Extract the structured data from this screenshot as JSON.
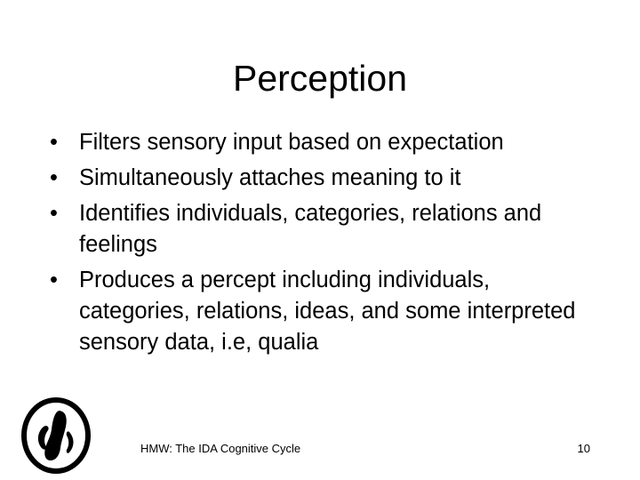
{
  "slide": {
    "title": "Perception",
    "bullets": [
      "Filters sensory input based on expectation",
      "Simultaneously attaches meaning to it",
      "Identifies individuals, categories, relations and feelings",
      "Produces a percept including individuals, categories, relations, ideas, and some interpreted sensory data, i.e, qualia"
    ],
    "bullet_glyph": "•",
    "footer": {
      "title": "HMW: The IDA Cognitive Cycle",
      "page_number": "10"
    },
    "logo_icon": "stylized-ida-logo-icon"
  }
}
